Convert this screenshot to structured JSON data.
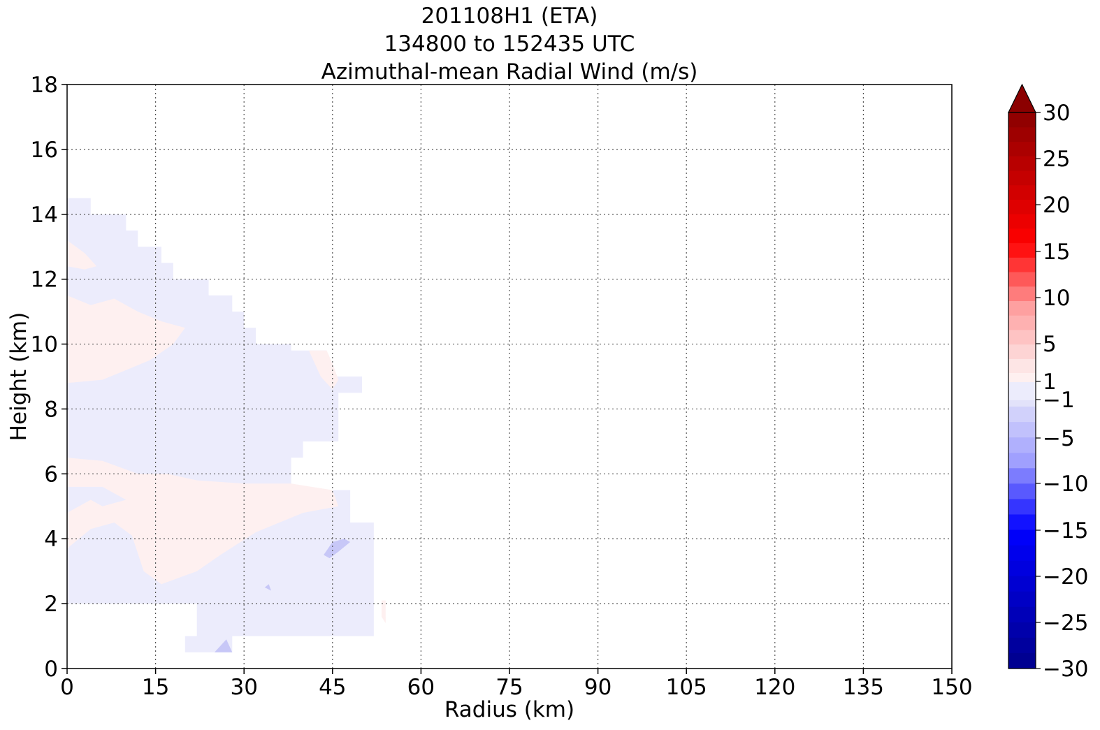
{
  "chart_data": {
    "type": "heatmap",
    "title_lines": [
      "201108H1 (ETA)",
      "134800 to 152435 UTC",
      "Azimuthal-mean Radial Wind (m/s)"
    ],
    "xlabel": "Radius (km)",
    "ylabel": "Height (km)",
    "xlim": [
      0,
      150
    ],
    "ylim": [
      0,
      18
    ],
    "xticks": [
      0,
      15,
      30,
      45,
      60,
      75,
      90,
      105,
      120,
      135,
      150
    ],
    "yticks": [
      0,
      2,
      4,
      6,
      8,
      10,
      12,
      14,
      16,
      18
    ],
    "grid": true,
    "colorbar": {
      "label_values": [
        "30",
        "25",
        "20",
        "15",
        "10",
        "5",
        "1",
        "−1",
        "−5",
        "−10",
        "−15",
        "−20",
        "−25",
        "−30"
      ],
      "extend": "max",
      "positive_color": "#8b0000",
      "negative_color": "#00008b"
    },
    "colors": {
      "slight_negative": "#ececfc",
      "slight_positive": "#fef0f0",
      "moderate_negative": "#c7c7f7"
    },
    "regions": [
      {
        "name": "upper-outflow-negative",
        "value_range": [
          -1,
          0
        ],
        "polygon": [
          [
            0,
            14.5
          ],
          [
            4,
            14.5
          ],
          [
            4,
            14
          ],
          [
            10,
            14
          ],
          [
            10,
            13.5
          ],
          [
            12,
            13.5
          ],
          [
            12,
            13
          ],
          [
            16,
            13
          ],
          [
            16,
            12.5
          ],
          [
            18,
            12.5
          ],
          [
            18,
            12
          ],
          [
            24,
            12
          ],
          [
            24,
            11.5
          ],
          [
            28,
            11.5
          ],
          [
            28,
            11
          ],
          [
            30,
            11
          ],
          [
            30,
            10.5
          ],
          [
            32,
            10.5
          ],
          [
            32,
            10
          ],
          [
            38,
            10
          ],
          [
            38,
            9.8
          ],
          [
            44,
            9.8
          ],
          [
            44,
            9
          ],
          [
            50,
            9
          ],
          [
            50,
            8.5
          ],
          [
            46,
            8.5
          ],
          [
            46,
            7
          ],
          [
            40,
            7
          ],
          [
            40,
            6.5
          ],
          [
            38,
            6.5
          ],
          [
            38,
            5.5
          ],
          [
            48,
            5.5
          ],
          [
            48,
            4.5
          ],
          [
            52,
            4.5
          ],
          [
            52,
            1
          ],
          [
            28,
            1
          ],
          [
            28,
            0.5
          ],
          [
            20,
            0.5
          ],
          [
            20,
            1
          ],
          [
            22,
            1
          ],
          [
            22,
            2
          ],
          [
            0,
            2
          ]
        ]
      },
      {
        "name": "upper-positive-lobe",
        "value_range": [
          0,
          1
        ],
        "polygon": [
          [
            0,
            13.2
          ],
          [
            3,
            12.8
          ],
          [
            5,
            12.4
          ],
          [
            3,
            12.3
          ],
          [
            0,
            12.4
          ]
        ]
      },
      {
        "name": "mid-positive-band",
        "value_range": [
          0,
          1
        ],
        "polygon": [
          [
            0,
            11.5
          ],
          [
            4,
            11.2
          ],
          [
            8,
            11.4
          ],
          [
            12,
            11
          ],
          [
            16,
            10.7
          ],
          [
            20,
            10.5
          ],
          [
            18,
            10
          ],
          [
            14,
            9.5
          ],
          [
            10,
            9.2
          ],
          [
            6,
            8.9
          ],
          [
            0,
            8.8
          ]
        ]
      },
      {
        "name": "low-positive-band",
        "value_range": [
          0,
          1
        ],
        "polygon": [
          [
            0,
            6.5
          ],
          [
            6,
            6.4
          ],
          [
            12,
            6
          ],
          [
            17,
            6
          ],
          [
            22,
            5.8
          ],
          [
            30,
            5.7
          ],
          [
            38,
            5.7
          ],
          [
            45,
            5.5
          ],
          [
            46,
            5.0
          ],
          [
            40,
            4.8
          ],
          [
            32,
            4.2
          ],
          [
            26,
            3.5
          ],
          [
            22,
            3
          ],
          [
            16,
            2.6
          ],
          [
            13,
            3
          ],
          [
            11,
            4.1
          ],
          [
            8,
            4.5
          ],
          [
            4,
            4.3
          ],
          [
            0,
            3.7
          ],
          [
            0,
            4.8
          ],
          [
            4,
            5.2
          ],
          [
            6,
            5.0
          ],
          [
            8,
            5.1
          ],
          [
            10,
            5.2
          ],
          [
            6,
            5.6
          ],
          [
            0,
            5.6
          ]
        ]
      },
      {
        "name": "positive-patch-45",
        "value_range": [
          0,
          1
        ],
        "polygon": [
          [
            41,
            9.8
          ],
          [
            44,
            9.8
          ],
          [
            45,
            9.4
          ],
          [
            46,
            8.9
          ],
          [
            45,
            8.6
          ],
          [
            43,
            9
          ]
        ]
      },
      {
        "name": "moderate-negative-blob",
        "value_range": [
          -2,
          -1
        ],
        "polygon": [
          [
            43.5,
            3.5
          ],
          [
            45,
            3.9
          ],
          [
            47,
            4.0
          ],
          [
            48,
            3.9
          ],
          [
            46,
            3.6
          ],
          [
            44.5,
            3.4
          ]
        ]
      },
      {
        "name": "moderate-negative-blob-small",
        "value_range": [
          -2,
          -1
        ],
        "polygon": [
          [
            33.5,
            2.5
          ],
          [
            34.2,
            2.6
          ],
          [
            34.6,
            2.4
          ]
        ]
      },
      {
        "name": "moderate-negative-bottom",
        "value_range": [
          -2,
          -1
        ],
        "polygon": [
          [
            25,
            0.5
          ],
          [
            28,
            0.5
          ],
          [
            27,
            0.9
          ]
        ]
      },
      {
        "name": "positive-edge-54",
        "value_range": [
          0,
          1
        ],
        "polygon": [
          [
            53.3,
            2.1
          ],
          [
            54,
            2.1
          ],
          [
            54,
            1.4
          ],
          [
            53.3,
            1.6
          ]
        ]
      }
    ]
  }
}
